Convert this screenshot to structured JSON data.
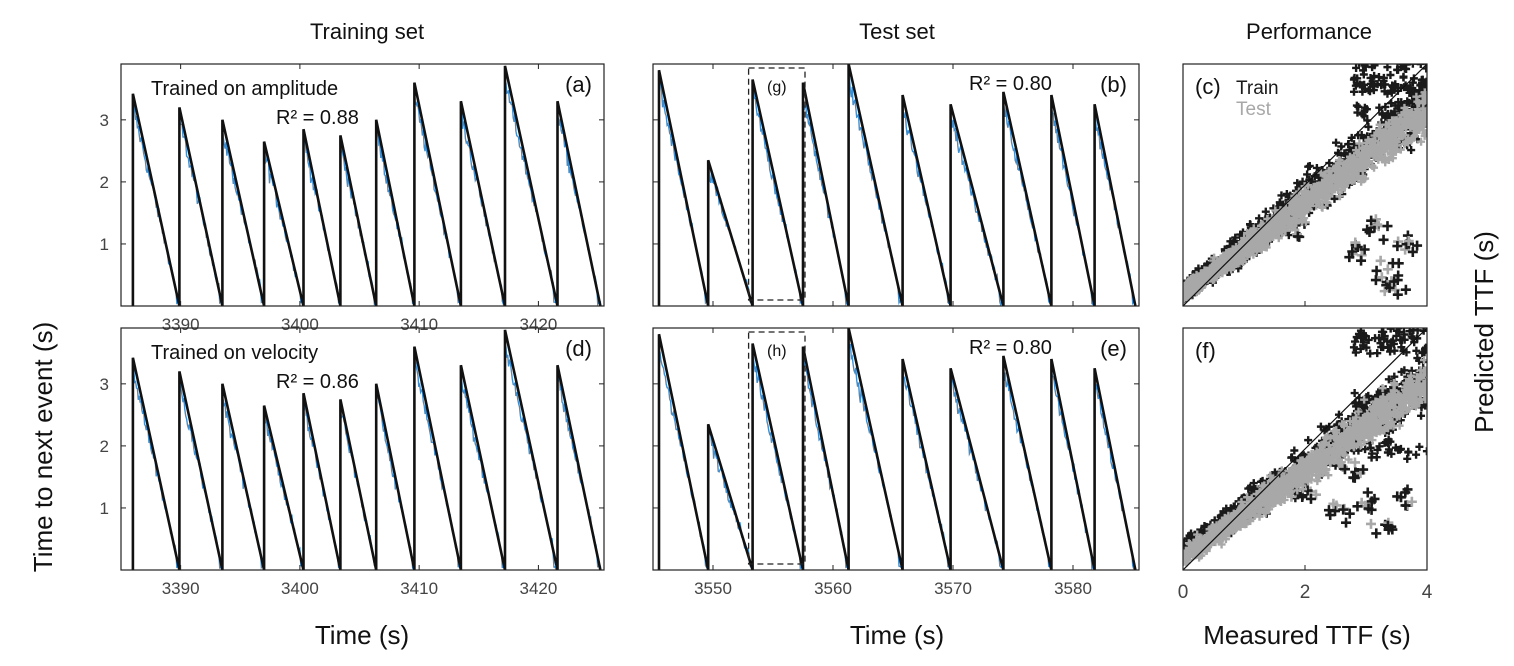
{
  "figure": {
    "col_titles": [
      "Training set",
      "Test set",
      "Performance"
    ],
    "ylabel_left": "Time to next event (s)",
    "ylabel_right": "Predicted TTF (s)",
    "xlabel_time_1": "Time (s)",
    "xlabel_time_2": "Time (s)",
    "xlabel_perf": "Measured TTF (s)",
    "legend": {
      "train": "Train",
      "test": "Test"
    }
  },
  "colors": {
    "true_ttf": "#111111",
    "predicted": "#3f8fd0",
    "train_points": "#1a1a1a",
    "test_points": "#a8a8a8",
    "axis": "#222222"
  },
  "chart_data": [
    {
      "id": "a",
      "type": "line",
      "panel_label": "(a)",
      "annotation": "Trained on amplitude",
      "r2_label": "R² = 0.88",
      "xlim": [
        3385,
        3425.5
      ],
      "ylim": [
        0,
        3.9
      ],
      "xticks": [
        3390,
        3400,
        3410,
        3420
      ],
      "yticks": [
        1,
        2,
        3
      ],
      "xtick_labels": [
        "3390",
        "3400",
        "3410",
        "3420"
      ],
      "ytick_labels": [
        "1",
        "2",
        "3"
      ],
      "cycles": [
        [
          3386.0,
          3.42
        ],
        [
          3389.9,
          3.2
        ],
        [
          3393.5,
          3.0
        ],
        [
          3397.0,
          2.65
        ],
        [
          3400.3,
          2.85
        ],
        [
          3403.4,
          2.75
        ],
        [
          3406.4,
          3.0
        ],
        [
          3409.6,
          3.6
        ],
        [
          3413.5,
          3.3
        ],
        [
          3417.2,
          3.87
        ],
        [
          3421.6,
          3.3
        ]
      ],
      "cycle_end": 3425.2,
      "series": [
        {
          "name": "Measured TTF"
        },
        {
          "name": "Predicted TTF"
        }
      ]
    },
    {
      "id": "b",
      "type": "line",
      "panel_label": "(b)",
      "r2_label": "R² = 0.80",
      "box_label": "(g)",
      "box_x": [
        3553.3,
        3557.5
      ],
      "xlim": [
        3545,
        3585.5
      ],
      "ylim": [
        0,
        3.9
      ],
      "xticks": [
        3550,
        3560,
        3570,
        3580
      ],
      "yticks": [
        1,
        2,
        3
      ],
      "xtick_labels": [],
      "ytick_labels": [],
      "cycles": [
        [
          3545.5,
          3.8
        ],
        [
          3549.6,
          2.35
        ],
        [
          3553.3,
          3.65
        ],
        [
          3557.5,
          3.6
        ],
        [
          3561.3,
          3.9
        ],
        [
          3565.8,
          3.4
        ],
        [
          3569.8,
          3.25
        ],
        [
          3574.2,
          3.45
        ],
        [
          3578.2,
          3.4
        ],
        [
          3581.8,
          3.25
        ]
      ],
      "cycle_end": 3585.2,
      "series": [
        {
          "name": "Measured TTF"
        },
        {
          "name": "Predicted TTF"
        }
      ]
    },
    {
      "id": "c",
      "type": "scatter",
      "panel_label": "(c)",
      "xlim": [
        0,
        4
      ],
      "ylim": [
        0,
        4
      ],
      "xticks": [
        0,
        2,
        4
      ],
      "xtick_labels": [],
      "series": [
        {
          "name": "Train",
          "band_start": 0.25,
          "band_end": 3.35,
          "upper_outliers": [
            3.2,
            3.6,
            4.0,
            3.7
          ],
          "lower_cluster": [
            [
              2.9,
              0.9
            ],
            [
              3.3,
              0.55
            ],
            [
              3.7,
              1.0
            ],
            [
              3.2,
              1.3
            ],
            [
              3.5,
              0.3
            ],
            [
              1.8,
              1.3
            ]
          ]
        },
        {
          "name": "Test",
          "band_start": 0.2,
          "band_end": 3.2
        }
      ],
      "diagonal": [
        [
          0,
          0
        ],
        [
          4,
          4
        ]
      ]
    },
    {
      "id": "d",
      "type": "line",
      "panel_label": "(d)",
      "annotation": "Trained on velocity",
      "r2_label": "R² = 0.86",
      "xlim": [
        3385,
        3425.5
      ],
      "ylim": [
        0,
        3.9
      ],
      "xticks": [
        3390,
        3400,
        3410,
        3420
      ],
      "yticks": [
        1,
        2,
        3
      ],
      "xtick_labels": [
        "3390",
        "3400",
        "3410",
        "3420"
      ],
      "ytick_labels": [
        "1",
        "2",
        "3"
      ],
      "cycles": [
        [
          3386.0,
          3.42
        ],
        [
          3389.9,
          3.2
        ],
        [
          3393.5,
          3.0
        ],
        [
          3397.0,
          2.65
        ],
        [
          3400.3,
          2.85
        ],
        [
          3403.4,
          2.75
        ],
        [
          3406.4,
          3.0
        ],
        [
          3409.6,
          3.6
        ],
        [
          3413.5,
          3.3
        ],
        [
          3417.2,
          3.87
        ],
        [
          3421.6,
          3.3
        ]
      ],
      "cycle_end": 3425.2,
      "series": [
        {
          "name": "Measured TTF"
        },
        {
          "name": "Predicted TTF"
        }
      ]
    },
    {
      "id": "e",
      "type": "line",
      "panel_label": "(e)",
      "r2_label": "R² = 0.80",
      "box_label": "(h)",
      "box_x": [
        3553.3,
        3557.5
      ],
      "xlim": [
        3545,
        3585.5
      ],
      "ylim": [
        0,
        3.9
      ],
      "xticks": [
        3550,
        3560,
        3570,
        3580
      ],
      "yticks": [
        1,
        2,
        3
      ],
      "xtick_labels": [
        "3550",
        "3560",
        "3570",
        "3580"
      ],
      "ytick_labels": [],
      "cycles": [
        [
          3545.5,
          3.8
        ],
        [
          3549.6,
          2.35
        ],
        [
          3553.3,
          3.65
        ],
        [
          3557.5,
          3.6
        ],
        [
          3561.3,
          3.9
        ],
        [
          3565.8,
          3.4
        ],
        [
          3569.8,
          3.25
        ],
        [
          3574.2,
          3.45
        ],
        [
          3578.2,
          3.4
        ],
        [
          3581.8,
          3.25
        ]
      ],
      "cycle_end": 3585.2,
      "series": [
        {
          "name": "Measured TTF"
        },
        {
          "name": "Predicted TTF"
        }
      ]
    },
    {
      "id": "f",
      "type": "scatter",
      "panel_label": "(f)",
      "xlim": [
        0,
        4
      ],
      "ylim": [
        0,
        4
      ],
      "xticks": [
        0,
        2,
        4
      ],
      "xtick_labels": [
        "0",
        "2",
        "4"
      ],
      "series": [
        {
          "name": "Train",
          "band_start": 0.3,
          "band_end": 3.2,
          "upper_outliers": [
            2.0,
            2.8,
            3.7,
            3.9
          ],
          "lower_cluster": [
            [
              2.0,
              1.3
            ],
            [
              2.5,
              1.0
            ],
            [
              3.0,
              1.1
            ],
            [
              3.3,
              0.7
            ],
            [
              2.8,
              1.6
            ],
            [
              3.6,
              1.2
            ]
          ]
        },
        {
          "name": "Test",
          "band_start": 0.2,
          "band_end": 3.1
        }
      ],
      "diagonal": [
        [
          0,
          0
        ],
        [
          4,
          4
        ]
      ]
    }
  ]
}
